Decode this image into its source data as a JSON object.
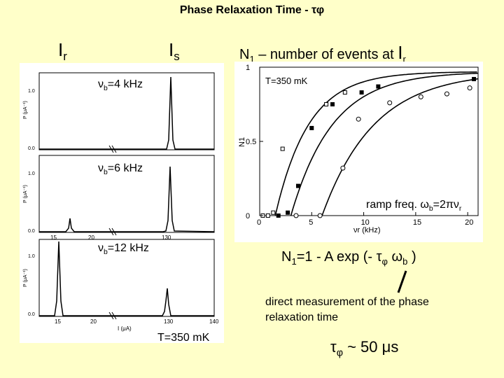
{
  "title": "Phase Relaxation Time - τφ",
  "label_ir": "I",
  "label_ir_sub": "r",
  "label_is": "I",
  "label_is_sub": "s",
  "n1_label": "N",
  "n1_sub": "1",
  "n1_text": " – number of events at ",
  "n1_ir": "I",
  "n1_ir_sub": "r",
  "nu4": {
    "nu": "ν",
    "sub": "b",
    "rest": "=4 kHz"
  },
  "nu6": {
    "nu": "ν",
    "sub": "b",
    "rest": "=6 kHz"
  },
  "nu12": {
    "nu": "ν",
    "sub": "b",
    "rest": "=12 kHz"
  },
  "left_temp": "T=350 mK",
  "ramp": {
    "pre": "ramp freq. ω",
    "sub1": "b",
    "mid": "=2πν",
    "sub2": "r"
  },
  "formula": {
    "a": "N",
    "a_sub": "1",
    "b": "=1 - A exp (- τ",
    "b_sub": "φ",
    "c": " ω",
    "c_sub": "b",
    "d": " )"
  },
  "direct": [
    "direct measurement of the phase",
    "relaxation time"
  ],
  "result": {
    "a": "τ",
    "a_sub": "φ",
    "b": " ~ 50 μs"
  },
  "panels": {
    "ylabel": "P (μA⁻¹)",
    "xlabel": "I (μA)",
    "xticks": [
      "15",
      "20",
      "130",
      "140"
    ],
    "yticks": [
      "1.0",
      "0.5",
      "0.0"
    ]
  },
  "chart_data": {
    "type": "scatter",
    "title": "T=350 mK",
    "xlabel": "νr (kHz)",
    "ylabel": "N1",
    "xlim": [
      0,
      21
    ],
    "ylim": [
      0,
      1
    ],
    "xticks": [
      0,
      5,
      10,
      15,
      20
    ],
    "yticks": [
      0,
      0.5,
      1
    ],
    "series": [
      {
        "marker": "open-square",
        "values": [
          [
            0.3,
            0
          ],
          [
            0.8,
            0
          ],
          [
            1.3,
            0.02
          ],
          [
            2.2,
            0.45
          ],
          [
            6.4,
            0.75
          ],
          [
            8.2,
            0.83
          ]
        ]
      },
      {
        "marker": "filled-square",
        "values": [
          [
            1.8,
            0
          ],
          [
            2.7,
            0.02
          ],
          [
            3.7,
            0.2
          ],
          [
            5.0,
            0.59
          ],
          [
            7.0,
            0.75
          ],
          [
            9.8,
            0.83
          ],
          [
            11.4,
            0.87
          ],
          [
            20.6,
            0.92
          ]
        ]
      },
      {
        "marker": "open-circle",
        "values": [
          [
            3.5,
            0
          ],
          [
            5.8,
            0
          ],
          [
            8.0,
            0.32
          ],
          [
            9.5,
            0.65
          ],
          [
            12.5,
            0.76
          ],
          [
            15.5,
            0.8
          ],
          [
            18.0,
            0.82
          ],
          [
            20.2,
            0.86
          ]
        ]
      }
    ]
  }
}
